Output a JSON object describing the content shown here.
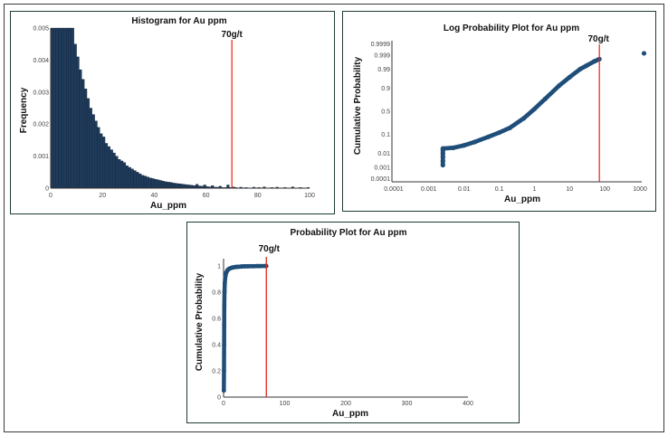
{
  "chart_data": [
    {
      "type": "bar",
      "title": "Histogram for Au ppm",
      "xlabel": "Au_ppm",
      "ylabel": "Frequency",
      "xlim": [
        0,
        100
      ],
      "ylim": [
        0,
        0.005
      ],
      "x_ticks": [
        "0",
        "20",
        "40",
        "60",
        "80",
        "100"
      ],
      "y_ticks": [
        "0",
        "0.001",
        "0.002",
        "0.003",
        "0.004",
        "0.005"
      ],
      "bin_width": 1,
      "bins_start": 0,
      "values": [
        0.005,
        0.005,
        0.005,
        0.005,
        0.005,
        0.005,
        0.005,
        0.005,
        0.005,
        0.0045,
        0.0041,
        0.0037,
        0.0034,
        0.0031,
        0.0028,
        0.0025,
        0.0023,
        0.0021,
        0.0019,
        0.0017,
        0.0016,
        0.0014,
        0.0013,
        0.0012,
        0.0011,
        0.001,
        0.0009,
        0.00085,
        0.0008,
        0.0007,
        0.00065,
        0.0006,
        0.00055,
        0.0005,
        0.00045,
        0.0004,
        0.00038,
        0.00035,
        0.00032,
        0.0003,
        0.00028,
        0.00026,
        0.00024,
        0.00022,
        0.0002,
        0.00019,
        0.00018,
        0.00016,
        0.00015,
        0.00014,
        0.00013,
        0.00012,
        0.00011,
        0.0001,
        9e-05,
        8e-05,
        0.00012,
        7e-05,
        6e-05,
        0.0001,
        5e-05,
        4e-05,
        8e-05,
        3e-05,
        3e-05,
        6e-05,
        2e-05,
        2e-05,
        0.0001,
        2e-05,
        4e-05,
        2e-05,
        0,
        3e-05,
        0,
        2e-05,
        0,
        0,
        3e-05,
        0,
        2e-05,
        0,
        4e-05,
        0,
        0,
        2e-05,
        0,
        3e-05,
        0,
        0,
        2e-05,
        0,
        0,
        4e-05,
        0,
        0,
        2e-05,
        0,
        0,
        2e-05
      ],
      "annotations": [
        {
          "x": 70,
          "label": "70g/t",
          "color": "#e2231a"
        }
      ],
      "bar_color": "#1f3b5c"
    },
    {
      "type": "scatter",
      "title": "Log Probability Plot for Au ppm",
      "xlabel": "Au_ppm",
      "ylabel": "Cumulative Probability",
      "x_scale": "log",
      "y_scale": "probability",
      "x_ticks": [
        0.0001,
        0.001,
        0.01,
        0.1,
        1,
        10,
        100,
        1000
      ],
      "x_tick_labels": [
        "0.0001",
        "0.001",
        "0.01",
        "0.1",
        "1",
        "10",
        "100",
        "1000"
      ],
      "y_ticks": [
        0.0001,
        0.001,
        0.01,
        0.1,
        0.5,
        0.9,
        0.99,
        0.999,
        0.9999
      ],
      "y_tick_labels": [
        "0.0001",
        "0.001",
        "0.01",
        "0.1",
        "0.5",
        "0.9",
        "0.99",
        "0.999",
        "0.9999"
      ],
      "x": [
        0.0025,
        0.0025,
        0.0025,
        0.0025,
        0.0025,
        0.0025,
        0.005,
        0.01,
        0.02,
        0.05,
        0.1,
        0.2,
        0.5,
        1,
        2,
        5,
        10,
        20,
        30,
        50,
        70,
        1300
      ],
      "y": [
        0.0015,
        0.003,
        0.006,
        0.01,
        0.015,
        0.02,
        0.022,
        0.03,
        0.045,
        0.08,
        0.12,
        0.18,
        0.35,
        0.55,
        0.75,
        0.92,
        0.97,
        0.99,
        0.994,
        0.997,
        0.998,
        0.9993
      ],
      "annotations": [
        {
          "x": 70,
          "label": "70g/t",
          "color": "#e2231a"
        }
      ],
      "point_color": "#1f4e79"
    },
    {
      "type": "scatter",
      "title": "Probability Plot for Au ppm",
      "xlabel": "Au_ppm",
      "ylabel": "Cumulative Probability",
      "xlim": [
        0,
        400
      ],
      "ylim": [
        0,
        1
      ],
      "x_ticks": [
        "0",
        "100",
        "200",
        "300",
        "400"
      ],
      "y_ticks": [
        "0",
        "0.2",
        "0.4",
        "0.6",
        "0.8",
        "1"
      ],
      "x": [
        0.5,
        0.7,
        0.9,
        1,
        1.2,
        1.5,
        2,
        2.5,
        3,
        3.5,
        4,
        5,
        6,
        7,
        8,
        10,
        12,
        14,
        16,
        18,
        20,
        22,
        25,
        28,
        30,
        35,
        40,
        45,
        50,
        55,
        60,
        70
      ],
      "y": [
        0.05,
        0.2,
        0.4,
        0.55,
        0.7,
        0.8,
        0.87,
        0.9,
        0.92,
        0.935,
        0.945,
        0.955,
        0.963,
        0.97,
        0.975,
        0.98,
        0.984,
        0.987,
        0.989,
        0.991,
        0.992,
        0.993,
        0.994,
        0.995,
        0.996,
        0.997,
        0.997,
        0.998,
        0.998,
        0.999,
        0.999,
        0.9995
      ],
      "annotations": [
        {
          "x": 70,
          "label": "70g/t",
          "color": "#e2231a"
        }
      ],
      "point_color": "#1f4e79"
    }
  ]
}
